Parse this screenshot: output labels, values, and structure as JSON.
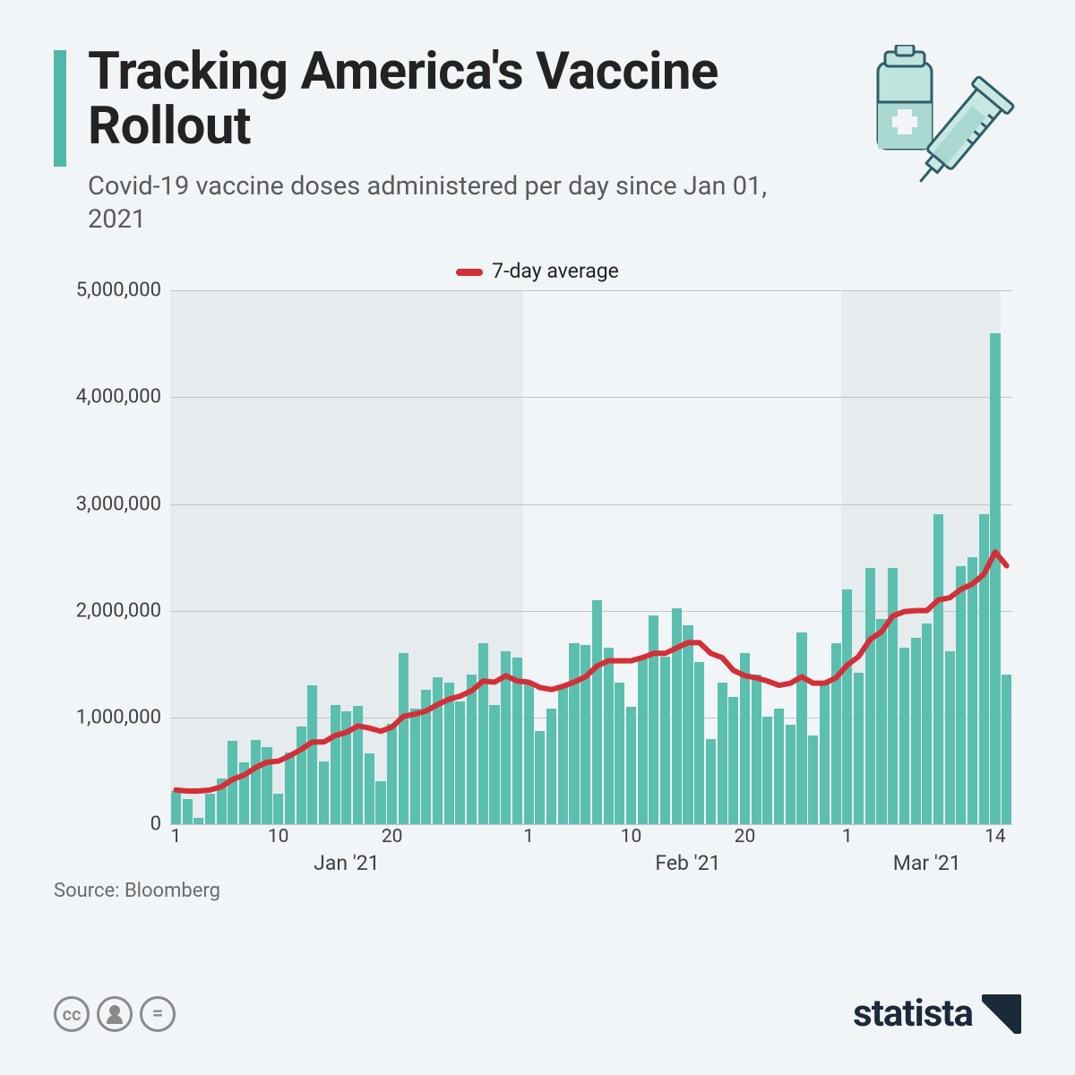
{
  "title": "Tracking America's Vaccine Rollout",
  "subtitle": "Covid-19 vaccine doses administered per day since Jan 01, 2021",
  "legend_label": "7-day average",
  "legend_color": "#d42f37",
  "source": "Source: Bloomberg",
  "brand": "statista",
  "accent_color": "#4fb8a8",
  "chart": {
    "type": "bar+line",
    "bar_color": "#5bbfaf",
    "line_color": "#d42f37",
    "line_width": 6,
    "ylim": [
      0,
      5000000
    ],
    "yticks": [
      0,
      1000000,
      2000000,
      3000000,
      4000000,
      5000000
    ],
    "ytick_labels": [
      "0",
      "1,000,000",
      "2,000,000",
      "3,000,000",
      "4,000,000",
      "5,000,000"
    ],
    "grid_color": "#bfc5c8",
    "plot_bg": "#f2f5f7",
    "shade_bg": "#e6ebee",
    "shade_ranges": [
      [
        0,
        31
      ],
      [
        59,
        73
      ]
    ],
    "x_tick_numbers": [
      {
        "idx": 0,
        "label": "1"
      },
      {
        "idx": 9,
        "label": "10"
      },
      {
        "idx": 19,
        "label": "20"
      },
      {
        "idx": 31,
        "label": "1"
      },
      {
        "idx": 40,
        "label": "10"
      },
      {
        "idx": 50,
        "label": "20"
      },
      {
        "idx": 59,
        "label": "1"
      },
      {
        "idx": 72,
        "label": "14"
      }
    ],
    "x_month_labels": [
      {
        "idx": 15,
        "label": "Jan '21"
      },
      {
        "idx": 45,
        "label": "Feb '21"
      },
      {
        "idx": 66,
        "label": "Mar '21"
      }
    ],
    "bars": [
      310000,
      240000,
      60000,
      290000,
      430000,
      780000,
      580000,
      790000,
      720000,
      290000,
      670000,
      920000,
      1300000,
      590000,
      1120000,
      1060000,
      1110000,
      660000,
      400000,
      940000,
      1600000,
      1080000,
      1260000,
      1380000,
      1330000,
      1150000,
      1400000,
      1700000,
      1120000,
      1620000,
      1560000,
      1320000,
      870000,
      1080000,
      1310000,
      1700000,
      1680000,
      2100000,
      1650000,
      1330000,
      1100000,
      1560000,
      1960000,
      1570000,
      2020000,
      1860000,
      1520000,
      800000,
      1330000,
      1190000,
      1600000,
      1400000,
      1010000,
      1080000,
      930000,
      1800000,
      830000,
      1320000,
      1700000,
      2200000,
      1420000,
      2400000,
      1920000,
      2400000,
      1650000,
      1750000,
      1880000,
      2900000,
      1620000,
      2420000,
      2500000,
      2900000,
      4600000,
      1400000
    ],
    "line": [
      320000,
      310000,
      310000,
      320000,
      350000,
      420000,
      460000,
      530000,
      580000,
      590000,
      640000,
      700000,
      770000,
      770000,
      830000,
      860000,
      920000,
      900000,
      870000,
      910000,
      1010000,
      1030000,
      1060000,
      1120000,
      1170000,
      1200000,
      1250000,
      1340000,
      1330000,
      1390000,
      1340000,
      1330000,
      1280000,
      1260000,
      1290000,
      1330000,
      1380000,
      1480000,
      1530000,
      1530000,
      1530000,
      1560000,
      1600000,
      1600000,
      1650000,
      1700000,
      1700000,
      1600000,
      1560000,
      1440000,
      1390000,
      1370000,
      1340000,
      1300000,
      1320000,
      1380000,
      1320000,
      1320000,
      1370000,
      1490000,
      1570000,
      1730000,
      1800000,
      1950000,
      1990000,
      2000000,
      2000000,
      2100000,
      2120000,
      2200000,
      2250000,
      2340000,
      2550000,
      2420000
    ]
  }
}
